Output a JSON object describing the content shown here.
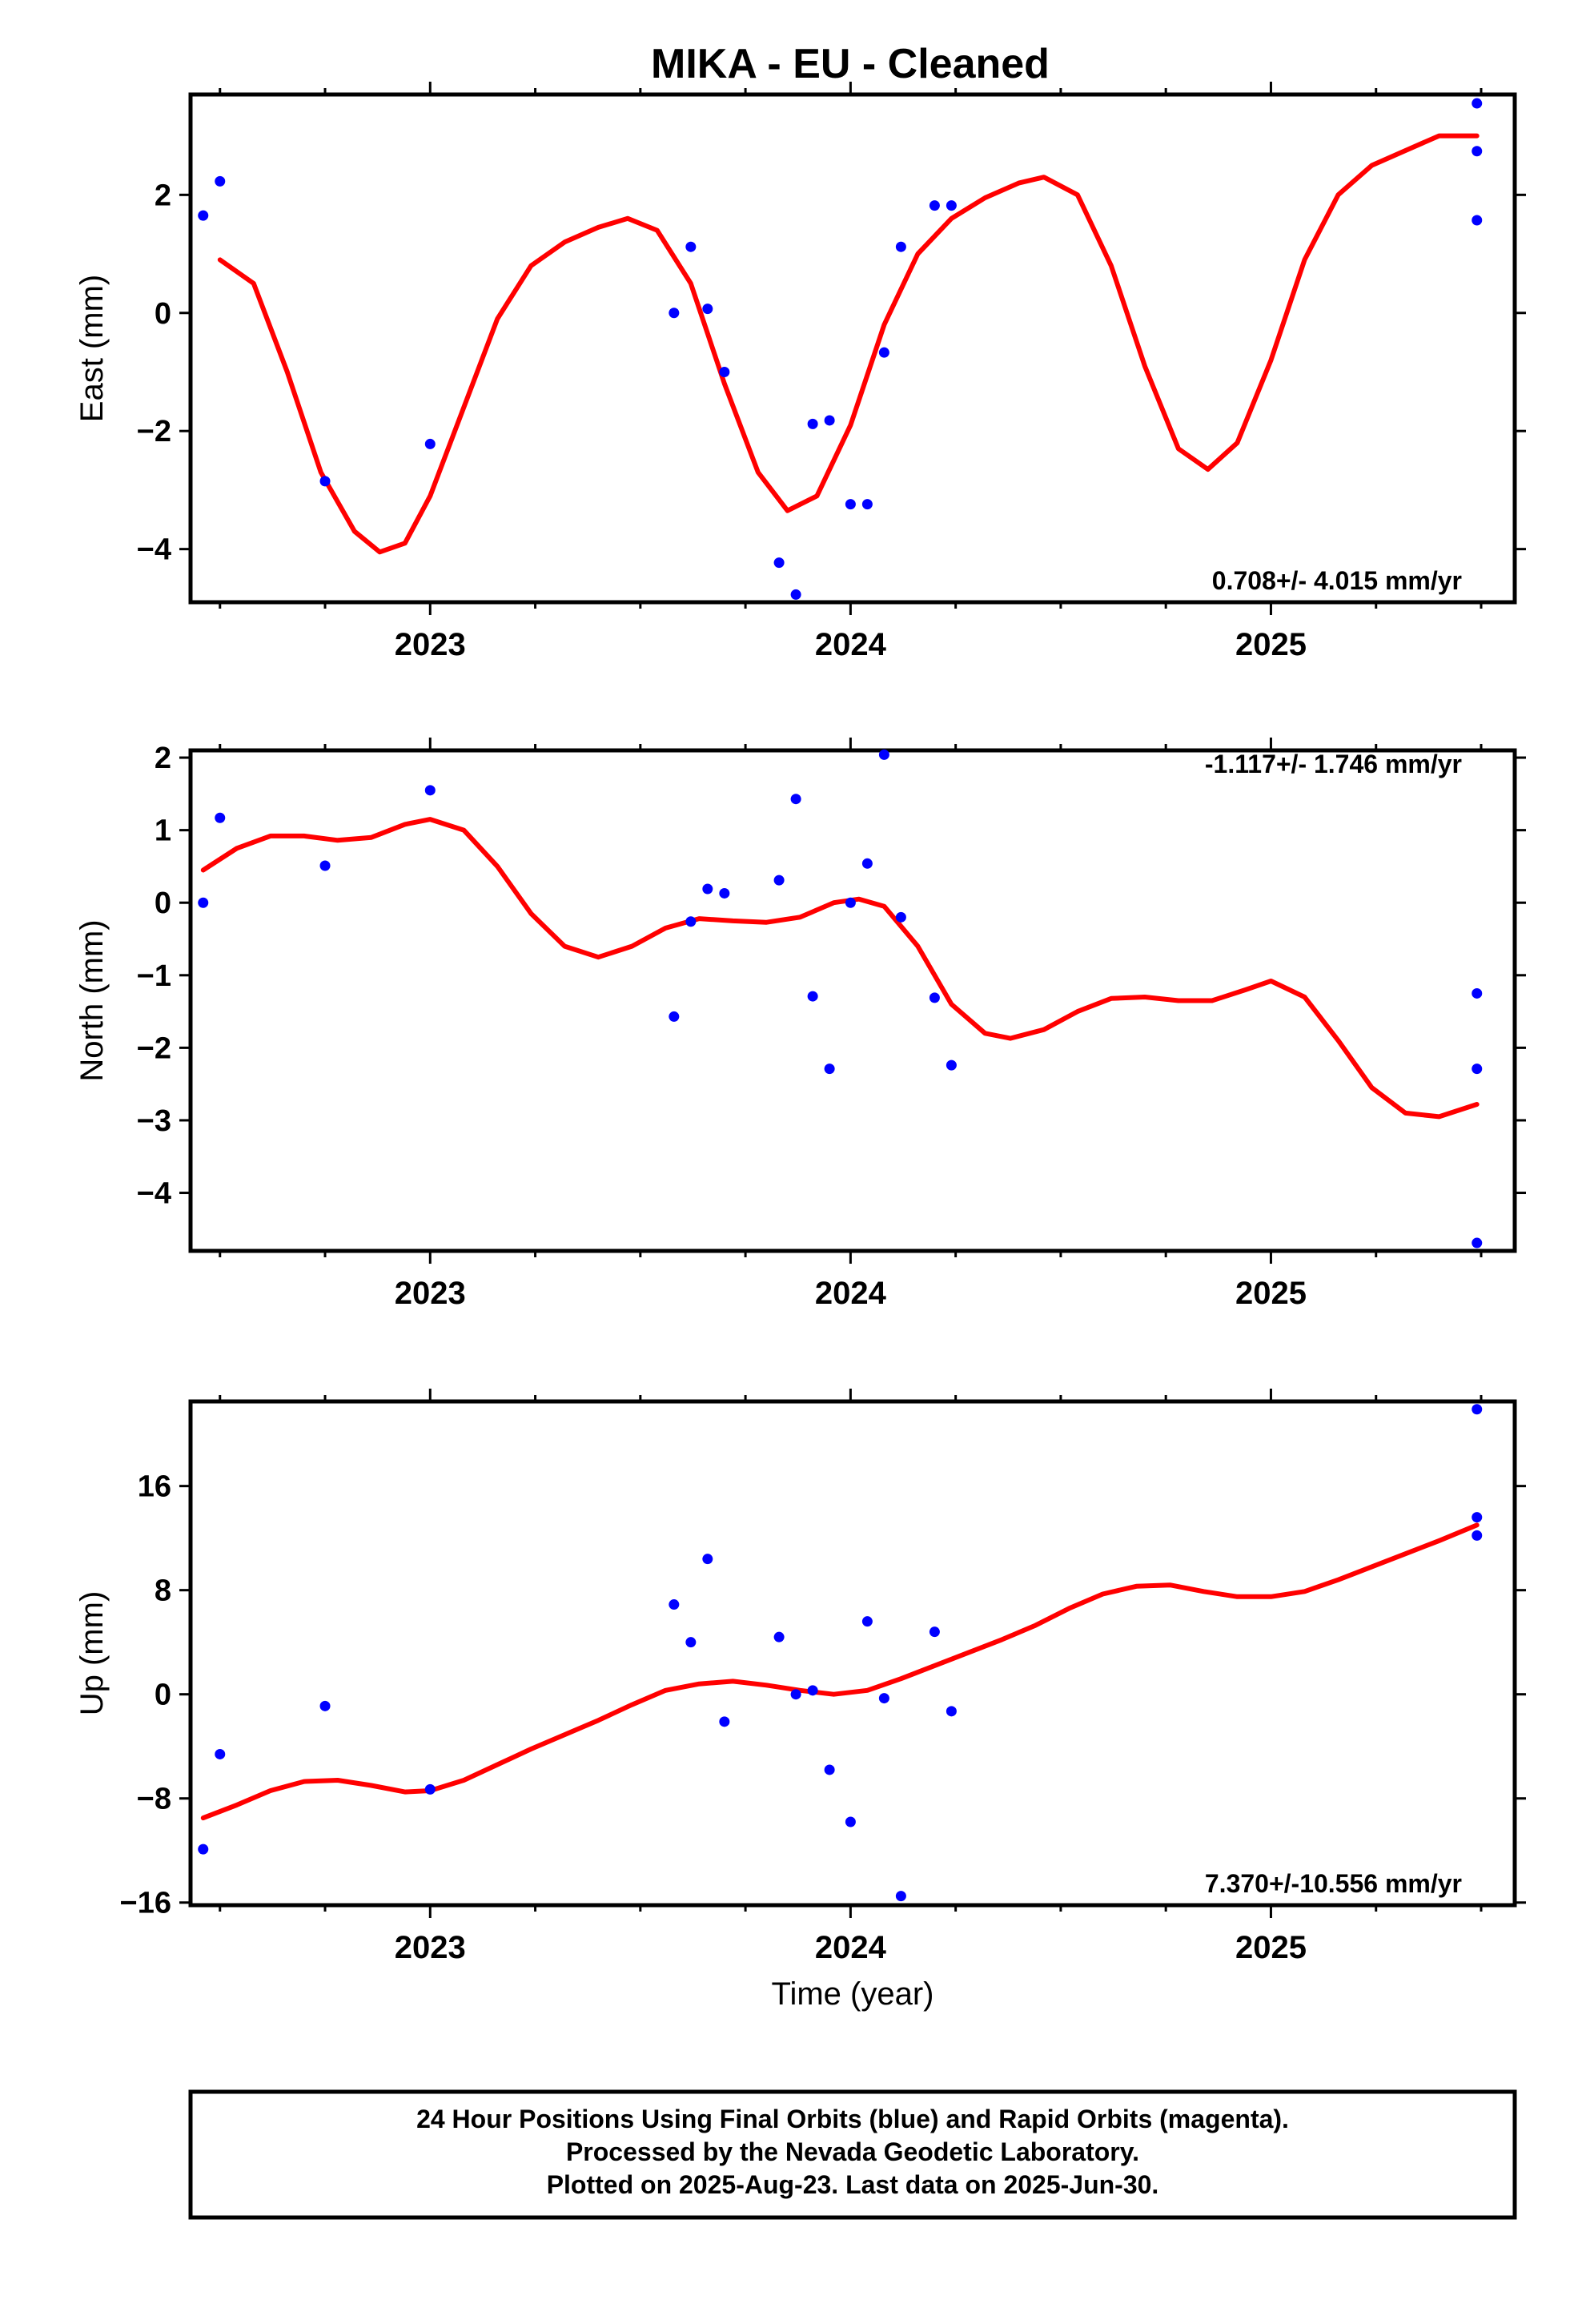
{
  "figure": {
    "title": "MIKA  - EU - Cleaned",
    "footer": [
      "24 Hour Positions Using Final Orbits (blue) and Rapid Orbits (magenta).",
      "Processed by the Nevada Geodetic Laboratory.",
      "Plotted on 2025-Aug-23. Last data on 2025-Jun-30."
    ]
  },
  "colors": {
    "points": "#0000ff",
    "fit": "#ff0000",
    "frame": "#000000"
  },
  "chart_data": [
    {
      "type": "scatter",
      "ylabel": "East (mm)",
      "xlabel": "",
      "rate_label": "0.708+/- 4.015 mm/yr",
      "rate_position": "bottom-right",
      "xlim": [
        2022.43,
        2025.58
      ],
      "ylim": [
        -4.9,
        3.7
      ],
      "yticks": [
        {
          "value": 2,
          "label": "2"
        },
        {
          "value": 0,
          "label": "0"
        },
        {
          "value": -2,
          "label": "−2"
        },
        {
          "value": -4,
          "label": "−4"
        }
      ],
      "xticks": [
        {
          "value": 2023,
          "label": "2023"
        },
        {
          "value": 2024,
          "label": "2024"
        },
        {
          "value": 2025,
          "label": "2025"
        }
      ],
      "minor_xticks": [
        2022.5,
        2022.75,
        2023.25,
        2023.5,
        2023.75,
        2024.25,
        2024.5,
        2024.75,
        2025.25,
        2025.5
      ],
      "points": [
        [
          2022.46,
          1.65
        ],
        [
          2022.5,
          2.23
        ],
        [
          2022.75,
          -2.85
        ],
        [
          2023.0,
          -2.22
        ],
        [
          2023.58,
          0.0
        ],
        [
          2023.62,
          1.12
        ],
        [
          2023.66,
          0.07
        ],
        [
          2023.7,
          -1.0
        ],
        [
          2023.83,
          -4.23
        ],
        [
          2023.87,
          -4.77
        ],
        [
          2023.91,
          -1.88
        ],
        [
          2023.95,
          -1.82
        ],
        [
          2024.0,
          -3.24
        ],
        [
          2024.04,
          -3.24
        ],
        [
          2024.08,
          -0.67
        ],
        [
          2024.12,
          1.12
        ],
        [
          2024.2,
          1.82
        ],
        [
          2024.24,
          1.82
        ],
        [
          2025.49,
          3.55
        ],
        [
          2025.49,
          2.74
        ],
        [
          2025.49,
          1.57
        ]
      ],
      "fit": [
        [
          2022.5,
          0.9
        ],
        [
          2022.58,
          0.5
        ],
        [
          2022.66,
          -1.0
        ],
        [
          2022.74,
          -2.7
        ],
        [
          2022.82,
          -3.7
        ],
        [
          2022.88,
          -4.05
        ],
        [
          2022.94,
          -3.9
        ],
        [
          2023.0,
          -3.1
        ],
        [
          2023.08,
          -1.6
        ],
        [
          2023.16,
          -0.1
        ],
        [
          2023.24,
          0.8
        ],
        [
          2023.32,
          1.2
        ],
        [
          2023.4,
          1.45
        ],
        [
          2023.47,
          1.6
        ],
        [
          2023.54,
          1.4
        ],
        [
          2023.62,
          0.5
        ],
        [
          2023.7,
          -1.2
        ],
        [
          2023.78,
          -2.7
        ],
        [
          2023.85,
          -3.35
        ],
        [
          2023.92,
          -3.1
        ],
        [
          2024.0,
          -1.9
        ],
        [
          2024.08,
          -0.2
        ],
        [
          2024.16,
          1.0
        ],
        [
          2024.24,
          1.6
        ],
        [
          2024.32,
          1.95
        ],
        [
          2024.4,
          2.2
        ],
        [
          2024.46,
          2.3
        ],
        [
          2024.54,
          2.0
        ],
        [
          2024.62,
          0.8
        ],
        [
          2024.7,
          -0.9
        ],
        [
          2024.78,
          -2.3
        ],
        [
          2024.85,
          -2.65
        ],
        [
          2024.92,
          -2.2
        ],
        [
          2025.0,
          -0.8
        ],
        [
          2025.08,
          0.9
        ],
        [
          2025.16,
          2.0
        ],
        [
          2025.24,
          2.5
        ],
        [
          2025.32,
          2.75
        ],
        [
          2025.4,
          3.0
        ],
        [
          2025.49,
          3.0
        ]
      ]
    },
    {
      "type": "scatter",
      "ylabel": "North (mm)",
      "xlabel": "",
      "rate_label": "-1.117+/- 1.746 mm/yr",
      "rate_position": "top-right",
      "xlim": [
        2022.43,
        2025.58
      ],
      "ylim": [
        -4.8,
        2.1
      ],
      "yticks": [
        {
          "value": 2,
          "label": "2"
        },
        {
          "value": 1,
          "label": "1"
        },
        {
          "value": 0,
          "label": "0"
        },
        {
          "value": -1,
          "label": "−1"
        },
        {
          "value": -2,
          "label": "−2"
        },
        {
          "value": -3,
          "label": "−3"
        },
        {
          "value": -4,
          "label": "−4"
        }
      ],
      "xticks": [
        {
          "value": 2023,
          "label": "2023"
        },
        {
          "value": 2024,
          "label": "2024"
        },
        {
          "value": 2025,
          "label": "2025"
        }
      ],
      "minor_xticks": [
        2022.5,
        2022.75,
        2023.25,
        2023.5,
        2023.75,
        2024.25,
        2024.5,
        2024.75,
        2025.25,
        2025.5
      ],
      "points": [
        [
          2022.46,
          0.0
        ],
        [
          2022.5,
          1.17
        ],
        [
          2022.75,
          0.51
        ],
        [
          2023.0,
          1.55
        ],
        [
          2023.58,
          -1.57
        ],
        [
          2023.62,
          -0.26
        ],
        [
          2023.66,
          0.19
        ],
        [
          2023.7,
          0.13
        ],
        [
          2023.83,
          0.31
        ],
        [
          2023.87,
          1.43
        ],
        [
          2023.91,
          -1.29
        ],
        [
          2023.95,
          -2.29
        ],
        [
          2024.0,
          0.0
        ],
        [
          2024.04,
          0.54
        ],
        [
          2024.08,
          2.04
        ],
        [
          2024.12,
          -0.2
        ],
        [
          2024.2,
          -1.31
        ],
        [
          2024.24,
          -2.24
        ],
        [
          2025.49,
          -1.25
        ],
        [
          2025.49,
          -2.29
        ],
        [
          2025.49,
          -4.69
        ]
      ],
      "fit": [
        [
          2022.46,
          0.45
        ],
        [
          2022.54,
          0.75
        ],
        [
          2022.62,
          0.92
        ],
        [
          2022.7,
          0.92
        ],
        [
          2022.78,
          0.86
        ],
        [
          2022.86,
          0.9
        ],
        [
          2022.94,
          1.08
        ],
        [
          2023.0,
          1.15
        ],
        [
          2023.08,
          1.0
        ],
        [
          2023.16,
          0.5
        ],
        [
          2023.24,
          -0.15
        ],
        [
          2023.32,
          -0.6
        ],
        [
          2023.4,
          -0.75
        ],
        [
          2023.48,
          -0.6
        ],
        [
          2023.56,
          -0.35
        ],
        [
          2023.64,
          -0.22
        ],
        [
          2023.72,
          -0.25
        ],
        [
          2023.8,
          -0.27
        ],
        [
          2023.88,
          -0.2
        ],
        [
          2023.96,
          0.0
        ],
        [
          2024.02,
          0.05
        ],
        [
          2024.08,
          -0.05
        ],
        [
          2024.16,
          -0.6
        ],
        [
          2024.24,
          -1.4
        ],
        [
          2024.32,
          -1.8
        ],
        [
          2024.38,
          -1.87
        ],
        [
          2024.46,
          -1.75
        ],
        [
          2024.54,
          -1.5
        ],
        [
          2024.62,
          -1.32
        ],
        [
          2024.7,
          -1.3
        ],
        [
          2024.78,
          -1.35
        ],
        [
          2024.86,
          -1.35
        ],
        [
          2024.94,
          -1.2
        ],
        [
          2025.0,
          -1.08
        ],
        [
          2025.08,
          -1.3
        ],
        [
          2025.16,
          -1.9
        ],
        [
          2025.24,
          -2.55
        ],
        [
          2025.32,
          -2.9
        ],
        [
          2025.4,
          -2.95
        ],
        [
          2025.49,
          -2.78
        ]
      ]
    },
    {
      "type": "scatter",
      "ylabel": "Up (mm)",
      "xlabel": "Time (year)",
      "rate_label": "7.370+/-10.556 mm/yr",
      "rate_position": "bottom-right",
      "xlim": [
        2022.43,
        2025.58
      ],
      "ylim": [
        -16.2,
        22.5
      ],
      "yticks": [
        {
          "value": 16,
          "label": "16"
        },
        {
          "value": 8,
          "label": "8"
        },
        {
          "value": 0,
          "label": "0"
        },
        {
          "value": -8,
          "label": "−8"
        },
        {
          "value": -16,
          "label": "−16"
        }
      ],
      "xticks": [
        {
          "value": 2023,
          "label": "2023"
        },
        {
          "value": 2024,
          "label": "2024"
        },
        {
          "value": 2025,
          "label": "2025"
        }
      ],
      "minor_xticks": [
        2022.5,
        2022.75,
        2023.25,
        2023.5,
        2023.75,
        2024.25,
        2024.5,
        2024.75,
        2025.25,
        2025.5
      ],
      "points": [
        [
          2022.46,
          -11.9
        ],
        [
          2022.5,
          -4.6
        ],
        [
          2022.75,
          -0.9
        ],
        [
          2023.0,
          -7.3
        ],
        [
          2023.58,
          6.9
        ],
        [
          2023.62,
          4.0
        ],
        [
          2023.66,
          10.4
        ],
        [
          2023.7,
          -2.1
        ],
        [
          2023.83,
          4.4
        ],
        [
          2023.87,
          0.0
        ],
        [
          2023.91,
          0.3
        ],
        [
          2023.95,
          -5.8
        ],
        [
          2024.0,
          -9.8
        ],
        [
          2024.04,
          5.6
        ],
        [
          2024.08,
          -0.3
        ],
        [
          2024.12,
          -15.5
        ],
        [
          2024.2,
          4.8
        ],
        [
          2024.24,
          -1.3
        ],
        [
          2025.49,
          21.9
        ],
        [
          2025.49,
          13.6
        ],
        [
          2025.49,
          12.2
        ]
      ],
      "fit": [
        [
          2022.46,
          -9.5
        ],
        [
          2022.54,
          -8.5
        ],
        [
          2022.62,
          -7.4
        ],
        [
          2022.7,
          -6.7
        ],
        [
          2022.78,
          -6.6
        ],
        [
          2022.86,
          -7.0
        ],
        [
          2022.94,
          -7.5
        ],
        [
          2023.0,
          -7.4
        ],
        [
          2023.08,
          -6.6
        ],
        [
          2023.16,
          -5.4
        ],
        [
          2023.24,
          -4.2
        ],
        [
          2023.32,
          -3.1
        ],
        [
          2023.4,
          -2.0
        ],
        [
          2023.48,
          -0.8
        ],
        [
          2023.56,
          0.3
        ],
        [
          2023.64,
          0.8
        ],
        [
          2023.72,
          1.0
        ],
        [
          2023.8,
          0.7
        ],
        [
          2023.88,
          0.3
        ],
        [
          2023.96,
          0.0
        ],
        [
          2024.04,
          0.3
        ],
        [
          2024.12,
          1.2
        ],
        [
          2024.2,
          2.2
        ],
        [
          2024.28,
          3.2
        ],
        [
          2024.36,
          4.2
        ],
        [
          2024.44,
          5.3
        ],
        [
          2024.52,
          6.6
        ],
        [
          2024.6,
          7.7
        ],
        [
          2024.68,
          8.3
        ],
        [
          2024.76,
          8.4
        ],
        [
          2024.84,
          7.9
        ],
        [
          2024.92,
          7.5
        ],
        [
          2025.0,
          7.5
        ],
        [
          2025.08,
          7.9
        ],
        [
          2025.16,
          8.8
        ],
        [
          2025.24,
          9.8
        ],
        [
          2025.32,
          10.8
        ],
        [
          2025.4,
          11.8
        ],
        [
          2025.49,
          13.0
        ]
      ]
    }
  ]
}
